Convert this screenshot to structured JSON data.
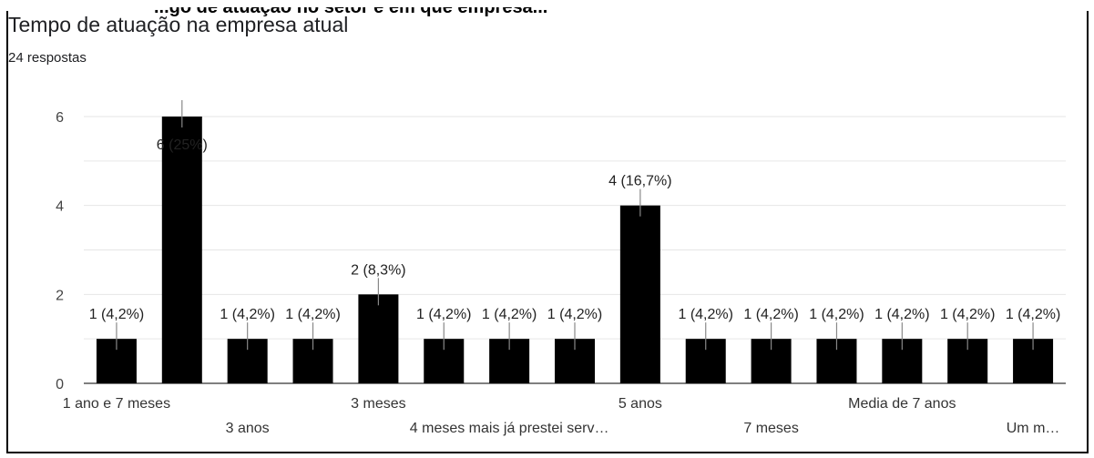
{
  "header": {
    "clipped_heading": "...go de atuação no setor e em que empresa...",
    "title": "Tempo de atuação na empresa atual",
    "responses": "24 respostas"
  },
  "chart_data": {
    "type": "bar",
    "ylim": [
      0,
      6
    ],
    "yticks": [
      0,
      2,
      4,
      6
    ],
    "grid": true,
    "color": "#000000",
    "values": [
      1,
      6,
      1,
      1,
      2,
      1,
      1,
      1,
      4,
      1,
      1,
      1,
      1,
      1,
      1
    ],
    "data_labels": [
      "1 (4,2%)",
      "6 (25%)",
      "1 (4,2%)",
      "1 (4,2%)",
      "2 (8,3%)",
      "1 (4,2%)",
      "1 (4,2%)",
      "1 (4,2%)",
      "4 (16,7%)",
      "1 (4,2%)",
      "1 (4,2%)",
      "1 (4,2%)",
      "1 (4,2%)",
      "1 (4,2%)",
      "1 (4,2%)"
    ],
    "categories": [
      "1 ano e 7 meses",
      "",
      "3 anos",
      "",
      "3 meses",
      "",
      "4 meses mais já prestei serv…",
      "",
      "5 anos",
      "",
      "7 meses",
      "",
      "Media de 7 anos",
      "",
      "Um m…"
    ],
    "visible_tick_labels": [
      {
        "index": 0,
        "label": "1 ano e 7 meses",
        "row": 1
      },
      {
        "index": 2,
        "label": "3 anos",
        "row": 2
      },
      {
        "index": 4,
        "label": "3 meses",
        "row": 1
      },
      {
        "index": 6,
        "label": "4 meses mais já prestei serv…",
        "row": 2
      },
      {
        "index": 8,
        "label": "5 anos",
        "row": 1
      },
      {
        "index": 10,
        "label": "7 meses",
        "row": 2
      },
      {
        "index": 12,
        "label": "Media de 7 anos",
        "row": 1
      },
      {
        "index": 14,
        "label": "Um m…",
        "row": 2
      }
    ]
  }
}
